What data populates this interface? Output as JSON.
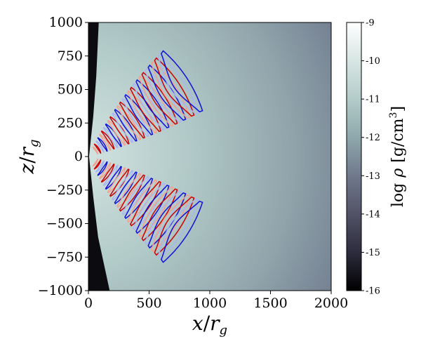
{
  "chart_data": {
    "type": "heatmap",
    "title": "",
    "xlabel": "x/r_g",
    "ylabel": "z/r_g",
    "xlabel_parts": [
      "x",
      "/",
      "r",
      "g"
    ],
    "ylabel_parts": [
      "z",
      "/",
      "r",
      "g"
    ],
    "xlim": [
      0,
      2000
    ],
    "ylim": [
      -1000,
      1000
    ],
    "x_ticks": [
      0,
      500,
      1000,
      1500,
      2000
    ],
    "x_tick_labels": [
      "0",
      "500",
      "1000",
      "1500",
      "2000"
    ],
    "y_ticks": [
      1000,
      750,
      500,
      250,
      0,
      -250,
      -500,
      -750,
      -1000
    ],
    "y_tick_labels": [
      "1000",
      "750",
      "500",
      "250",
      "0",
      "−250",
      "−500",
      "−750",
      "−1000"
    ],
    "colorbar": {
      "label": "log ρ [g/cm3]",
      "label_parts": [
        "log",
        "ρ",
        "[g/cm",
        "3",
        "]"
      ],
      "range": [
        -16,
        -9
      ],
      "ticks": [
        -9,
        -10,
        -11,
        -12,
        -13,
        -14,
        -15,
        -16
      ],
      "tick_labels": [
        "-9",
        "-10",
        "-11",
        "-12",
        "-13",
        "-14",
        "-15",
        "-16"
      ],
      "colormap": "bone",
      "colors": [
        "#000000",
        "#2b2b3c",
        "#545468",
        "#707a8c",
        "#8ea7ac",
        "#b2cbc8",
        "#d8e6e4",
        "#ffffff"
      ]
    },
    "density_field": {
      "funnel_boundary": [
        {
          "z": 1000,
          "x": 85
        },
        {
          "z": 600,
          "x": 65
        },
        {
          "z": 300,
          "x": 40
        },
        {
          "z": 0,
          "x": 5
        },
        {
          "z": -300,
          "x": 40
        },
        {
          "z": -600,
          "x": 80
        },
        {
          "z": -1000,
          "x": 175
        }
      ],
      "peak_log_rho": -10.4,
      "outer_log_rho": -12.6
    },
    "contours": {
      "colors": {
        "positive_strong": "#cc0000",
        "positive_weak": "#f4a08c",
        "negative_strong": "#1010dd",
        "negative_weak": "#a8b4f4"
      },
      "pattern": "nested loops emanating from origin",
      "lobes": [
        "upper",
        "lower"
      ],
      "max_radius": 1000,
      "count_per_lobe": 28
    }
  }
}
